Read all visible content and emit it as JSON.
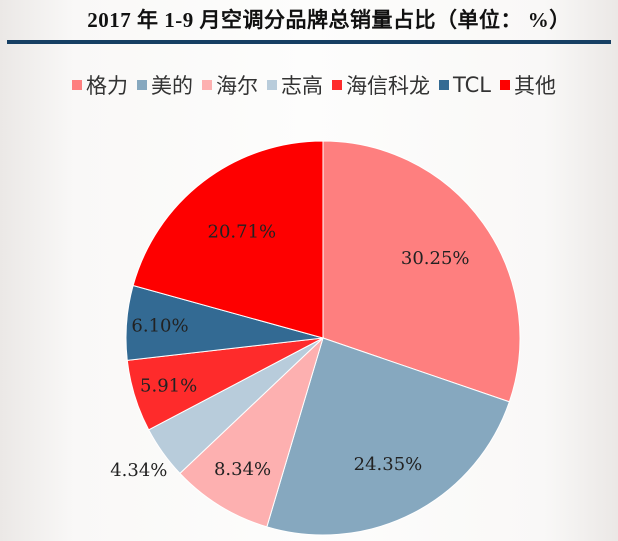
{
  "title": "2017 年 1-9 月空调分品牌总销量占比（单位：  %）",
  "chart_data": {
    "type": "pie",
    "title": "2017 年 1-9 月空调分品牌总销量占比（单位：  %）",
    "start_angle": "12 o'clock",
    "direction": "clockwise",
    "legend_position": "top",
    "categories": [
      "格力",
      "美的",
      "海尔",
      "志高",
      "海信科龙",
      "TCL",
      "其他"
    ],
    "values": [
      30.25,
      24.35,
      8.34,
      4.34,
      5.91,
      6.1,
      20.71
    ],
    "labels": [
      "30.25%",
      "24.35%",
      "8.34%",
      "4.34%",
      "5.91%",
      "6.10%",
      "20.71%"
    ],
    "colors": [
      "#fe7f7f",
      "#86a8bf",
      "#fdb0b0",
      "#b8ccdb",
      "#fe2b2b",
      "#336a93",
      "#fe0000"
    ]
  },
  "legend": [
    {
      "label": "格力",
      "color": "#fe7f7f"
    },
    {
      "label": "美的",
      "color": "#86a8bf"
    },
    {
      "label": "海尔",
      "color": "#fdb0b0"
    },
    {
      "label": "志高",
      "color": "#b8ccdb"
    },
    {
      "label": "海信科龙",
      "color": "#fe2b2b"
    },
    {
      "label": "TCL",
      "color": "#336a93"
    },
    {
      "label": "其他",
      "color": "#fe0000"
    }
  ]
}
